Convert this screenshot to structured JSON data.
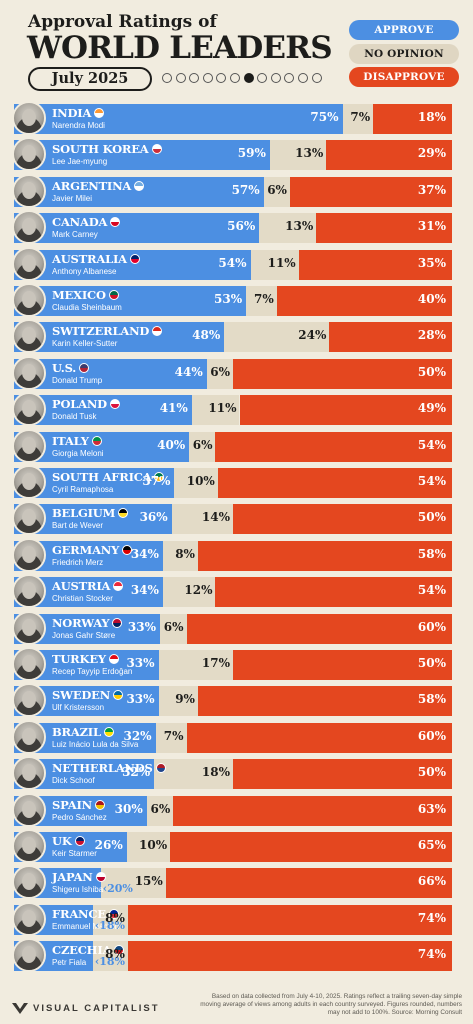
{
  "header": {
    "title_small": "Approval Ratings of",
    "title_big": "WORLD LEADERS",
    "date": "July 2025",
    "pager": {
      "count": 12,
      "active_index": 6
    }
  },
  "legend": {
    "approve": "APPROVE",
    "no_opinion": "NO OPINION",
    "disapprove": "DISAPPROVE"
  },
  "colors": {
    "approve": "#4c8fe2",
    "no_opinion": "#e3dbc7",
    "disapprove": "#e4471f",
    "background": "#f1ecdf"
  },
  "chart_data": {
    "type": "bar",
    "stacked": true,
    "orientation": "horizontal",
    "categories": [
      "INDIA",
      "SOUTH KOREA",
      "ARGENTINA",
      "CANADA",
      "AUSTRALIA",
      "MEXICO",
      "SWITZERLAND",
      "U.S.",
      "POLAND",
      "ITALY",
      "SOUTH AFRICA",
      "BELGIUM",
      "GERMANY",
      "AUSTRIA",
      "NORWAY",
      "TURKEY",
      "SWEDEN",
      "BRAZIL",
      "NETHERLANDS",
      "SPAIN",
      "UK",
      "JAPAN",
      "FRANCE",
      "CZECHIA"
    ],
    "leaders": [
      "Narendra Modi",
      "Lee Jae-myung",
      "Javier Milei",
      "Mark Carney",
      "Anthony Albanese",
      "Claudia Sheinbaum",
      "Karin Keller-Sutter",
      "Donald Trump",
      "Donald Tusk",
      "Giorgia Meloni",
      "Cyril Ramaphosa",
      "Bart de Wever",
      "Friedrich Merz",
      "Christian Stocker",
      "Jonas Gahr Støre",
      "Recep Tayyip Erdoğan",
      "Ulf Kristersson",
      "Luiz Inácio Lula da Silva",
      "Dick Schoof",
      "Pedro Sánchez",
      "Keir Starmer",
      "Shigeru Ishiba",
      "Emmanuel Macron",
      "Petr Fiala"
    ],
    "flag_colors": [
      [
        "#ff9933",
        "#ffffff"
      ],
      [
        "#ffffff",
        "#cd2e3a"
      ],
      [
        "#74acdf",
        "#ffffff"
      ],
      [
        "#ffffff",
        "#d80621"
      ],
      [
        "#012169",
        "#e4002b"
      ],
      [
        "#006847",
        "#ce1126"
      ],
      [
        "#da291c",
        "#ffffff"
      ],
      [
        "#3c3b6e",
        "#b22234"
      ],
      [
        "#ffffff",
        "#dc143c"
      ],
      [
        "#009246",
        "#ce2b37"
      ],
      [
        "#007a4d",
        "#ffb612"
      ],
      [
        "#000000",
        "#fdda24"
      ],
      [
        "#000000",
        "#dd0000"
      ],
      [
        "#ed2939",
        "#ffffff"
      ],
      [
        "#ba0c2f",
        "#00205b"
      ],
      [
        "#e30a17",
        "#ffffff"
      ],
      [
        "#006aa7",
        "#fecc00"
      ],
      [
        "#009c3b",
        "#ffdf00"
      ],
      [
        "#ae1c28",
        "#21468b"
      ],
      [
        "#aa151b",
        "#f1bf00"
      ],
      [
        "#012169",
        "#c8102e"
      ],
      [
        "#ffffff",
        "#bc002d"
      ],
      [
        "#002395",
        "#ed2939"
      ],
      [
        "#11457e",
        "#d7141a"
      ]
    ],
    "series": [
      {
        "name": "APPROVE",
        "values": [
          75,
          59,
          57,
          56,
          54,
          53,
          48,
          44,
          41,
          40,
          37,
          36,
          34,
          34,
          33,
          33,
          33,
          32,
          32,
          30,
          26,
          20,
          18,
          18
        ]
      },
      {
        "name": "NO OPINION",
        "values": [
          7,
          13,
          6,
          13,
          11,
          7,
          24,
          6,
          11,
          6,
          10,
          14,
          8,
          12,
          6,
          17,
          9,
          7,
          18,
          6,
          10,
          15,
          8,
          8
        ]
      },
      {
        "name": "DISAPPROVE",
        "values": [
          18,
          29,
          37,
          31,
          35,
          40,
          28,
          50,
          49,
          54,
          54,
          50,
          58,
          54,
          60,
          50,
          58,
          60,
          50,
          63,
          65,
          66,
          74,
          74
        ]
      }
    ],
    "xlim": [
      0,
      100
    ],
    "unit": "%"
  },
  "footer": {
    "note": "Based on data collected from July 4-10, 2025. Ratings reflect a trailing seven-day simple moving average of views among adults in each country surveyed. Figures rounded, numbers may not add to 100%. Source: Morning Consult",
    "brand": "VISUAL CAPITALIST"
  }
}
